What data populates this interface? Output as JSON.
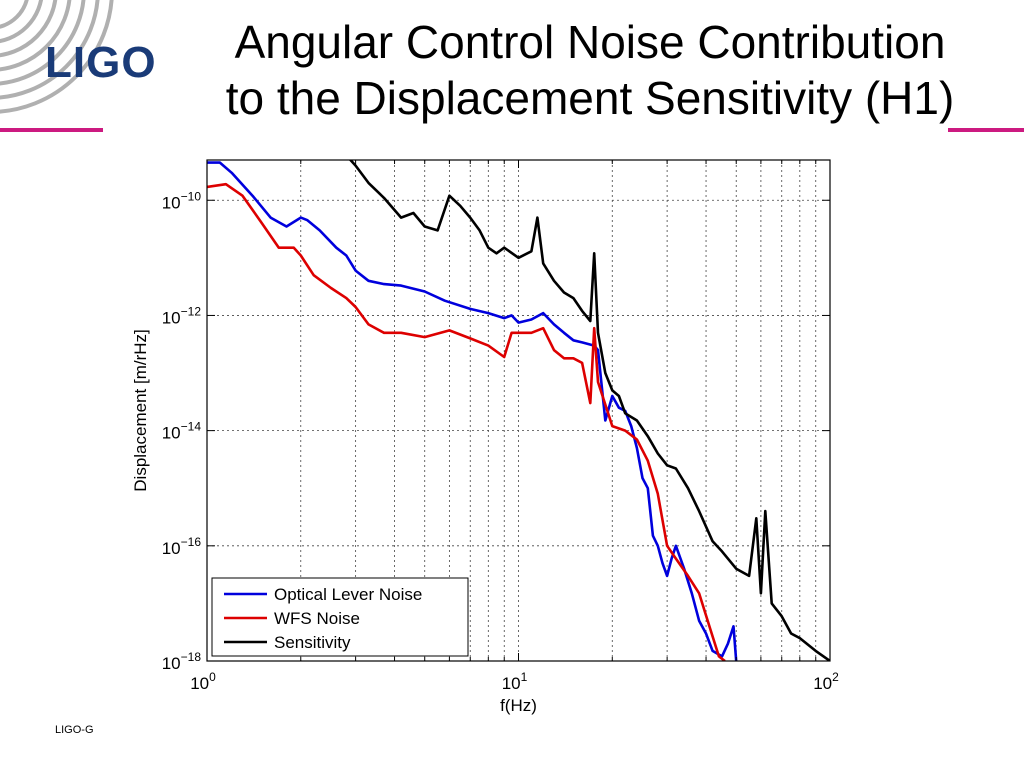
{
  "slide": {
    "title_line1": "Angular Control Noise Contribution",
    "title_line2": "to the Displacement Sensitivity (H1)",
    "logo_text": "LIGO",
    "footer_text": "LIGO-G",
    "accent_color": "#cc1a80"
  },
  "chart_data": {
    "type": "line",
    "xlabel": "f(Hz)",
    "ylabel": "Displacement [m/rHz]",
    "xscale": "log",
    "yscale": "log",
    "xlim": [
      1,
      100
    ],
    "ylim": [
      1e-18,
      5e-10
    ],
    "grid": true,
    "legend_position": "bottom-left",
    "x_ticks": [
      {
        "base": "10",
        "exp": "0",
        "value": 1
      },
      {
        "base": "10",
        "exp": "1",
        "value": 10
      },
      {
        "base": "10",
        "exp": "2",
        "value": 100
      }
    ],
    "y_ticks": [
      {
        "base": "10",
        "exp": "−10",
        "value": 1e-10
      },
      {
        "base": "10",
        "exp": "−12",
        "value": 1e-12
      },
      {
        "base": "10",
        "exp": "−14",
        "value": 1e-14
      },
      {
        "base": "10",
        "exp": "−16",
        "value": 1e-16
      },
      {
        "base": "10",
        "exp": "−18",
        "value": 1e-18
      }
    ],
    "series": [
      {
        "name": "Optical Lever Noise",
        "color": "#0000dd",
        "points": [
          [
            1.0,
            4.5e-10
          ],
          [
            1.1,
            4.5e-10
          ],
          [
            1.2,
            3e-10
          ],
          [
            1.4,
            1.2e-10
          ],
          [
            1.6,
            5e-11
          ],
          [
            1.8,
            3.5e-11
          ],
          [
            2.0,
            5e-11
          ],
          [
            2.1,
            4.5e-11
          ],
          [
            2.3,
            3e-11
          ],
          [
            2.6,
            1.5e-11
          ],
          [
            2.8,
            1.1e-11
          ],
          [
            3.0,
            6e-12
          ],
          [
            3.3,
            4e-12
          ],
          [
            3.7,
            3.5e-12
          ],
          [
            4.2,
            3.3e-12
          ],
          [
            5.0,
            2.6e-12
          ],
          [
            5.8,
            1.8e-12
          ],
          [
            7.0,
            1.3e-12
          ],
          [
            8.0,
            1.1e-12
          ],
          [
            9.0,
            9e-13
          ],
          [
            9.5,
            1e-12
          ],
          [
            10.0,
            7.5e-13
          ],
          [
            11.0,
            8.5e-13
          ],
          [
            12.0,
            1.1e-12
          ],
          [
            13.0,
            7e-13
          ],
          [
            14.0,
            5e-13
          ],
          [
            15.0,
            3.7e-13
          ],
          [
            16.0,
            3.4e-13
          ],
          [
            17.5,
            3e-13
          ],
          [
            18.0,
            2.5e-13
          ],
          [
            19.0,
            1.5e-14
          ],
          [
            20.0,
            4e-14
          ],
          [
            21.0,
            2.5e-14
          ],
          [
            22.0,
            2.2e-14
          ],
          [
            23.0,
            1.2e-14
          ],
          [
            24.0,
            5e-15
          ],
          [
            25.0,
            1.5e-15
          ],
          [
            26.0,
            1e-15
          ],
          [
            27.0,
            1.5e-16
          ],
          [
            28.0,
            1e-16
          ],
          [
            29.0,
            5e-17
          ],
          [
            30.0,
            3e-17
          ],
          [
            31.0,
            6e-17
          ],
          [
            32.0,
            1e-16
          ],
          [
            34.0,
            4e-17
          ],
          [
            36.0,
            1.5e-17
          ],
          [
            38.0,
            5e-18
          ],
          [
            40.0,
            3e-18
          ],
          [
            42.0,
            1.5e-18
          ],
          [
            45.0,
            1.2e-18
          ],
          [
            47.0,
            2e-18
          ],
          [
            49.0,
            4e-18
          ],
          [
            50.0,
            1e-18
          ]
        ]
      },
      {
        "name": "WFS Noise",
        "color": "#dd0000",
        "points": [
          [
            1.0,
            1.7e-10
          ],
          [
            1.15,
            1.9e-10
          ],
          [
            1.3,
            1.2e-10
          ],
          [
            1.5,
            4e-11
          ],
          [
            1.7,
            1.5e-11
          ],
          [
            1.9,
            1.5e-11
          ],
          [
            2.0,
            1.1e-11
          ],
          [
            2.2,
            5e-12
          ],
          [
            2.5,
            3e-12
          ],
          [
            2.8,
            2e-12
          ],
          [
            3.0,
            1.4e-12
          ],
          [
            3.3,
            7e-13
          ],
          [
            3.7,
            5e-13
          ],
          [
            4.2,
            5e-13
          ],
          [
            5.0,
            4.2e-13
          ],
          [
            6.0,
            5.5e-13
          ],
          [
            7.0,
            4e-13
          ],
          [
            8.0,
            3e-13
          ],
          [
            9.0,
            1.9e-13
          ],
          [
            9.5,
            5e-13
          ],
          [
            10.0,
            5e-13
          ],
          [
            11.0,
            5e-13
          ],
          [
            12.0,
            6e-13
          ],
          [
            13.0,
            2.5e-13
          ],
          [
            14.0,
            1.8e-13
          ],
          [
            15.0,
            1.8e-13
          ],
          [
            16.0,
            1.5e-13
          ],
          [
            17.0,
            3e-14
          ],
          [
            17.5,
            6e-13
          ],
          [
            18.0,
            7e-14
          ],
          [
            20.0,
            1.2e-14
          ],
          [
            22.0,
            1e-14
          ],
          [
            24.0,
            7e-15
          ],
          [
            26.0,
            3e-15
          ],
          [
            28.0,
            8e-16
          ],
          [
            30.0,
            1e-16
          ],
          [
            32.0,
            6e-17
          ],
          [
            35.0,
            3e-17
          ],
          [
            38.0,
            1.5e-17
          ],
          [
            41.0,
            4e-18
          ],
          [
            44.0,
            1.2e-18
          ],
          [
            46.0,
            1e-18
          ]
        ]
      },
      {
        "name": "Sensitivity",
        "color": "#000000",
        "points": [
          [
            2.8,
            6e-10
          ],
          [
            3.0,
            4e-10
          ],
          [
            3.3,
            2e-10
          ],
          [
            3.7,
            1.1e-10
          ],
          [
            4.2,
            5e-11
          ],
          [
            4.6,
            6e-11
          ],
          [
            5.0,
            3.5e-11
          ],
          [
            5.5,
            3e-11
          ],
          [
            6.0,
            1.2e-10
          ],
          [
            6.5,
            8e-11
          ],
          [
            7.0,
            5e-11
          ],
          [
            7.5,
            3e-11
          ],
          [
            8.0,
            1.5e-11
          ],
          [
            8.5,
            1.2e-11
          ],
          [
            9.0,
            1.5e-11
          ],
          [
            10.0,
            1e-11
          ],
          [
            11.0,
            1.3e-11
          ],
          [
            11.5,
            5e-11
          ],
          [
            12.0,
            8e-12
          ],
          [
            13.0,
            4e-12
          ],
          [
            14.0,
            2.5e-12
          ],
          [
            15.0,
            2e-12
          ],
          [
            16.0,
            1.2e-12
          ],
          [
            17.0,
            8e-13
          ],
          [
            17.5,
            1.2e-11
          ],
          [
            18.0,
            5e-13
          ],
          [
            19.0,
            1e-13
          ],
          [
            20.0,
            5e-14
          ],
          [
            21.0,
            4e-14
          ],
          [
            22.0,
            2e-14
          ],
          [
            24.0,
            1.5e-14
          ],
          [
            26.0,
            8e-15
          ],
          [
            28.0,
            4e-15
          ],
          [
            30.0,
            2.5e-15
          ],
          [
            32.0,
            2.2e-15
          ],
          [
            35.0,
            1e-15
          ],
          [
            38.0,
            4e-16
          ],
          [
            42.0,
            1.2e-16
          ],
          [
            45.0,
            8e-17
          ],
          [
            50.0,
            4e-17
          ],
          [
            55.0,
            3e-17
          ],
          [
            58.0,
            3e-16
          ],
          [
            60.0,
            1.5e-17
          ],
          [
            62.0,
            4e-16
          ],
          [
            65.0,
            1e-17
          ],
          [
            70.0,
            6e-18
          ],
          [
            75.0,
            3e-18
          ],
          [
            80.0,
            2.5e-18
          ],
          [
            90.0,
            1.5e-18
          ],
          [
            100.0,
            1e-18
          ]
        ]
      }
    ]
  }
}
